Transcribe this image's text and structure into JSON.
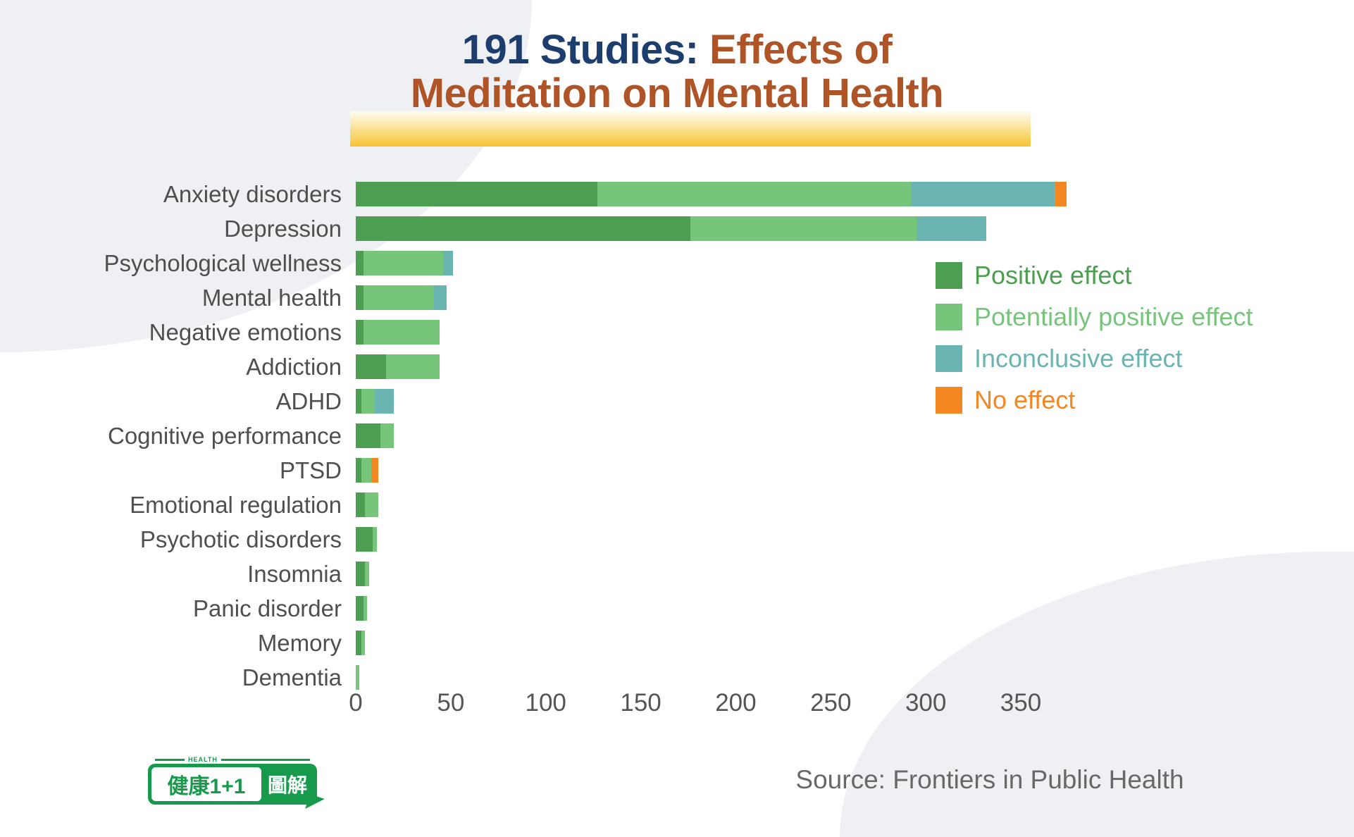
{
  "title": {
    "part1": "191 Studies:",
    "part2": "Effects of",
    "line2": "Meditation on Mental Health",
    "navy_color": "#1d3d6d",
    "rust_color": "#ae5426",
    "highlight_color": "#f6c434"
  },
  "source": "Source: Frontiers in Public Health",
  "logo": {
    "health_label": "HEALTH",
    "main_text": "健康1+1",
    "suffix_text": "圖解",
    "green": "#179a4c"
  },
  "legend": [
    {
      "label": "Positive effect",
      "color": "#4d9e50"
    },
    {
      "label": "Potentially positive effect",
      "color": "#76c57a"
    },
    {
      "label": "Inconclusive effect",
      "color": "#6ab4b1"
    },
    {
      "label": "No effect",
      "color": "#f58723"
    }
  ],
  "chart_data": {
    "type": "bar",
    "orientation": "horizontal",
    "stacked": true,
    "title": "191 Studies: Effects of Meditation on Mental Health",
    "source": "Source: Frontiers in Public Health",
    "xlabel": "",
    "ylabel": "",
    "xlim": [
      0,
      350
    ],
    "xticks": [
      0,
      50,
      100,
      150,
      200,
      250,
      300,
      350
    ],
    "grid": false,
    "legend_position": "upper right",
    "categories": [
      "Anxiety disorders",
      "Depression",
      "Psychological wellness",
      "Mental health",
      "Negative emotions",
      "Addiction",
      "ADHD",
      "Cognitive performance",
      "PTSD",
      "Emotional regulation",
      "Psychotic disorders",
      "Insomnia",
      "Panic disorder",
      "Memory",
      "Dementia"
    ],
    "series": [
      {
        "name": "Positive effect",
        "color": "#4d9e50",
        "values": [
          127,
          176,
          4,
          4,
          4,
          16,
          3,
          13,
          3,
          5,
          9,
          5,
          4,
          3,
          0
        ]
      },
      {
        "name": "Potentially positive effect",
        "color": "#76c57a",
        "values": [
          165,
          119,
          42,
          37,
          40,
          28,
          7,
          7,
          5,
          7,
          2,
          2,
          2,
          2,
          2
        ]
      },
      {
        "name": "Inconclusive effect",
        "color": "#6ab4b1",
        "values": [
          76,
          37,
          5,
          7,
          0,
          0,
          10,
          0,
          0,
          0,
          0,
          0,
          0,
          0,
          0
        ]
      },
      {
        "name": "No effect",
        "color": "#f58723",
        "values": [
          6,
          0,
          0,
          0,
          0,
          0,
          0,
          0,
          4,
          0,
          0,
          0,
          0,
          0,
          0
        ]
      }
    ]
  }
}
